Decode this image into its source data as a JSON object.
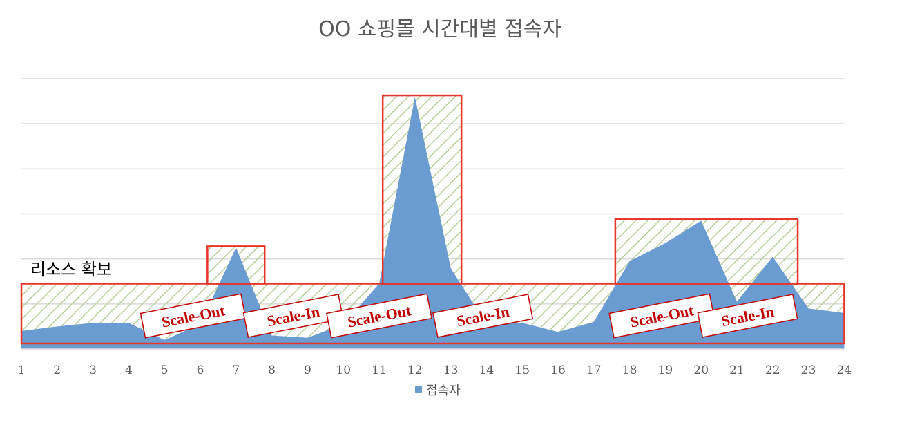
{
  "chart_data": {
    "type": "area",
    "title": "OO 쇼핑몰 시간대별 접속자",
    "xlabel": "",
    "ylabel": "",
    "categories": [
      "1",
      "2",
      "3",
      "4",
      "5",
      "6",
      "7",
      "8",
      "9",
      "10",
      "11",
      "12",
      "13",
      "14",
      "15",
      "16",
      "17",
      "18",
      "19",
      "20",
      "21",
      "22",
      "23",
      "24"
    ],
    "series": [
      {
        "name": "접속자",
        "values": [
          4,
          5,
          5.8,
          5.8,
          2,
          5.5,
          22.5,
          3,
          2.5,
          5.5,
          14.5,
          56,
          18,
          5.5,
          5.8,
          3.8,
          6,
          19.5,
          23.5,
          28.5,
          10.5,
          20.5,
          9,
          8
        ],
        "color": "#6a9bd1"
      }
    ],
    "ylim": [
      0,
      60
    ],
    "grid": true,
    "legend": "bottom",
    "baseline_capacity": {
      "label": "리소스 확보",
      "level": 14.5
    },
    "scale_boxes": [
      {
        "x_from": 6.2,
        "x_to": 7.8,
        "level": 22.5
      },
      {
        "x_from": 11.1,
        "x_to": 13.3,
        "level": 56
      },
      {
        "x_from": 17.6,
        "x_to": 22.7,
        "level": 28.5
      }
    ],
    "badges": [
      {
        "text": "Scale-Out",
        "at": 5.8
      },
      {
        "text": "Scale-In",
        "at": 8.6
      },
      {
        "text": "Scale-Out",
        "at": 11.0
      },
      {
        "text": "Scale-In",
        "at": 13.9
      },
      {
        "text": "Scale-Out",
        "at": 18.9
      },
      {
        "text": "Scale-In",
        "at": 21.3
      }
    ],
    "colors": {
      "frame": "#e8352a",
      "hatch": "#b6cf9a",
      "grid": "#d9d9d9",
      "area": "#6a9bd1"
    }
  }
}
